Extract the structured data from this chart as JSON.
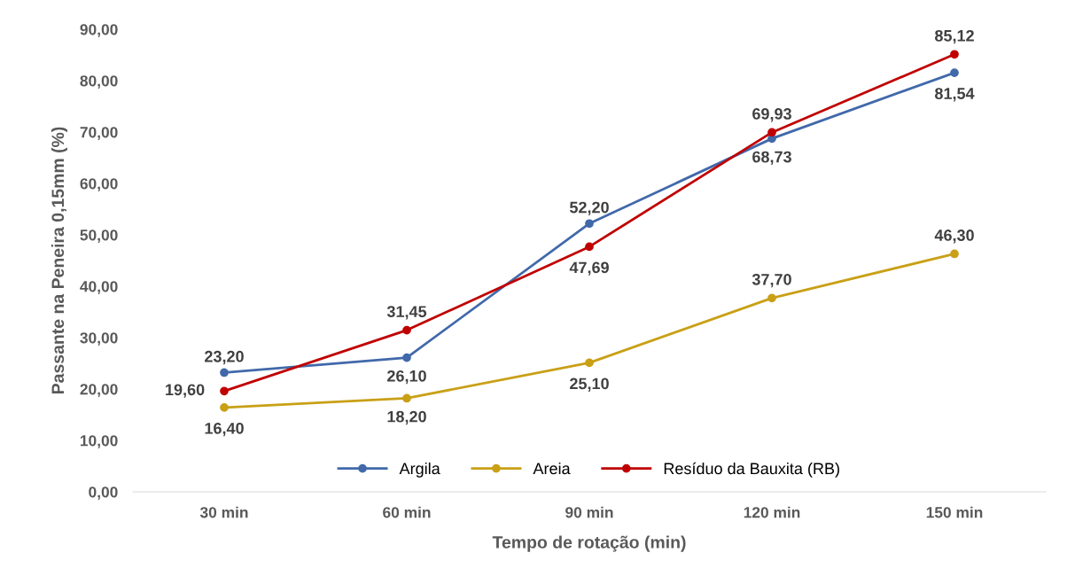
{
  "chart_data": {
    "type": "line",
    "xlabel": "Tempo de rotação (min)",
    "ylabel": "Passante na Peneira 0,15mm (%)",
    "categories": [
      "30 min",
      "60 min",
      "90 min",
      "120 min",
      "150 min"
    ],
    "series": [
      {
        "name": "Argila",
        "color": "#4169aa",
        "values": [
          23.2,
          26.1,
          52.2,
          68.73,
          81.54
        ],
        "value_labels": [
          "23,20",
          "26,10",
          "52,20",
          "68,73",
          "81,54"
        ]
      },
      {
        "name": "Areia",
        "color": "#c9a016",
        "values": [
          16.4,
          18.2,
          25.1,
          37.7,
          46.3
        ],
        "value_labels": [
          "16,40",
          "18,20",
          "25,10",
          "37,70",
          "46,30"
        ]
      },
      {
        "name": "Resíduo da Bauxita (RB)",
        "color": "#c00000",
        "values": [
          19.6,
          31.45,
          47.69,
          69.93,
          85.12
        ],
        "value_labels": [
          "19,60",
          "31,45",
          "47,69",
          "69,93",
          "85,12"
        ]
      }
    ],
    "ylim": [
      0,
      90
    ],
    "yticks": [
      {
        "value": 0,
        "label": "0,00"
      },
      {
        "value": 10,
        "label": "10,00"
      },
      {
        "value": 20,
        "label": "20,00"
      },
      {
        "value": 30,
        "label": "30,00"
      },
      {
        "value": 40,
        "label": "40,00"
      },
      {
        "value": 50,
        "label": "50,00"
      },
      {
        "value": 60,
        "label": "60,00"
      },
      {
        "value": 70,
        "label": "70,00"
      },
      {
        "value": 80,
        "label": "80,00"
      },
      {
        "value": 90,
        "label": "90,00"
      }
    ],
    "grid": false,
    "legend": "bottom",
    "marker": "circle",
    "line_style": "solid"
  }
}
